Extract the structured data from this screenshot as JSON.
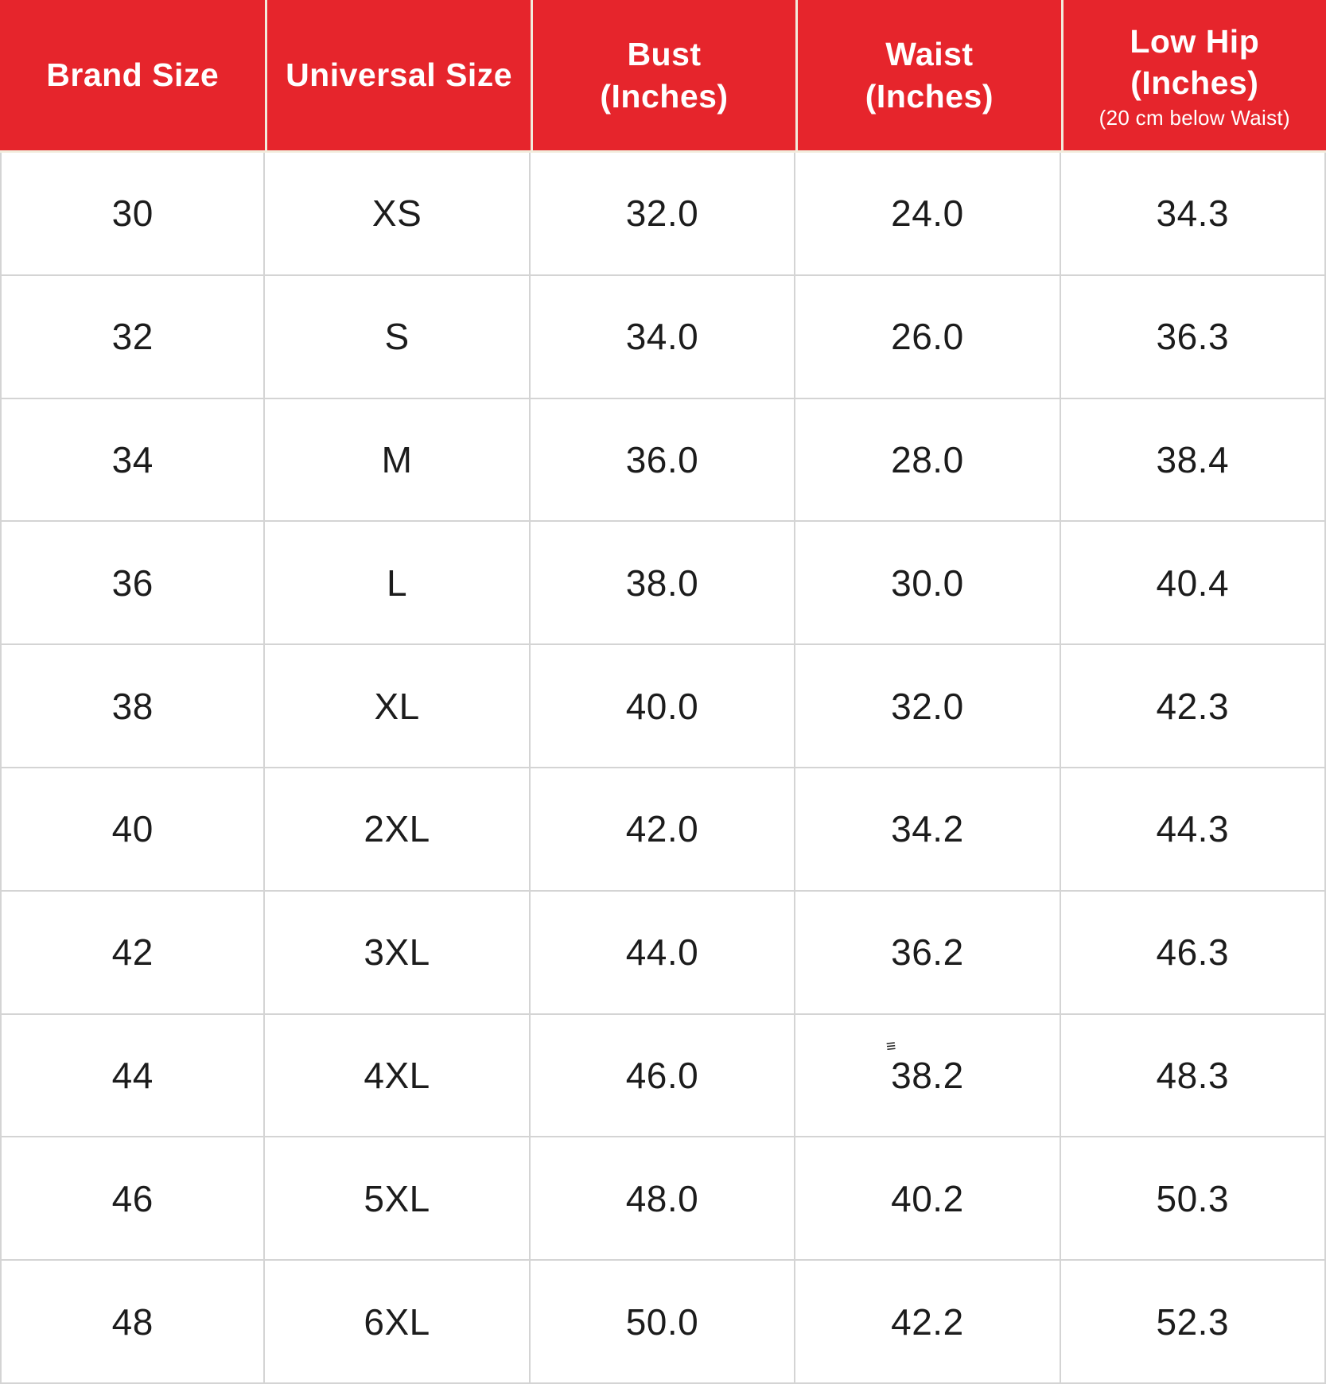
{
  "chart_data": {
    "type": "table",
    "columns": [
      "Brand Size",
      "Universal Size",
      "Bust (Inches)",
      "Waist (Inches)",
      "Low Hip (Inches) (20 cm below Waist)"
    ],
    "rows": [
      [
        "30",
        "XS",
        "32.0",
        "24.0",
        "34.3"
      ],
      [
        "32",
        "S",
        "34.0",
        "26.0",
        "36.3"
      ],
      [
        "34",
        "M",
        "36.0",
        "28.0",
        "38.4"
      ],
      [
        "36",
        "L",
        "38.0",
        "30.0",
        "40.4"
      ],
      [
        "38",
        "XL",
        "40.0",
        "32.0",
        "42.3"
      ],
      [
        "40",
        "2XL",
        "42.0",
        "34.2",
        "44.3"
      ],
      [
        "42",
        "3XL",
        "44.0",
        "36.2",
        "46.3"
      ],
      [
        "44",
        "4XL",
        "46.0",
        "38.2",
        "48.3"
      ],
      [
        "46",
        "5XL",
        "48.0",
        "40.2",
        "50.3"
      ],
      [
        "48",
        "6XL",
        "50.0",
        "42.2",
        "52.3"
      ]
    ],
    "legend_position": "none",
    "grid": true
  },
  "header": {
    "columns": [
      {
        "line1": "Brand Size"
      },
      {
        "line1": "Universal Size"
      },
      {
        "line1": "Bust",
        "line2": "(Inches)"
      },
      {
        "line1": "Waist",
        "line2": "(Inches)"
      },
      {
        "line1": "Low Hip",
        "line2": "(Inches)",
        "note": "(20 cm below Waist)"
      }
    ]
  },
  "artifact": {
    "glyph": "≡",
    "row_index": 7,
    "col_index": 3
  },
  "colors": {
    "header_bg": "#E6252C",
    "header_text": "#FFFFFF",
    "header_divider": "#F2ECDC",
    "grid_line": "#D4D4D4",
    "body_text": "#1C1C1C"
  }
}
